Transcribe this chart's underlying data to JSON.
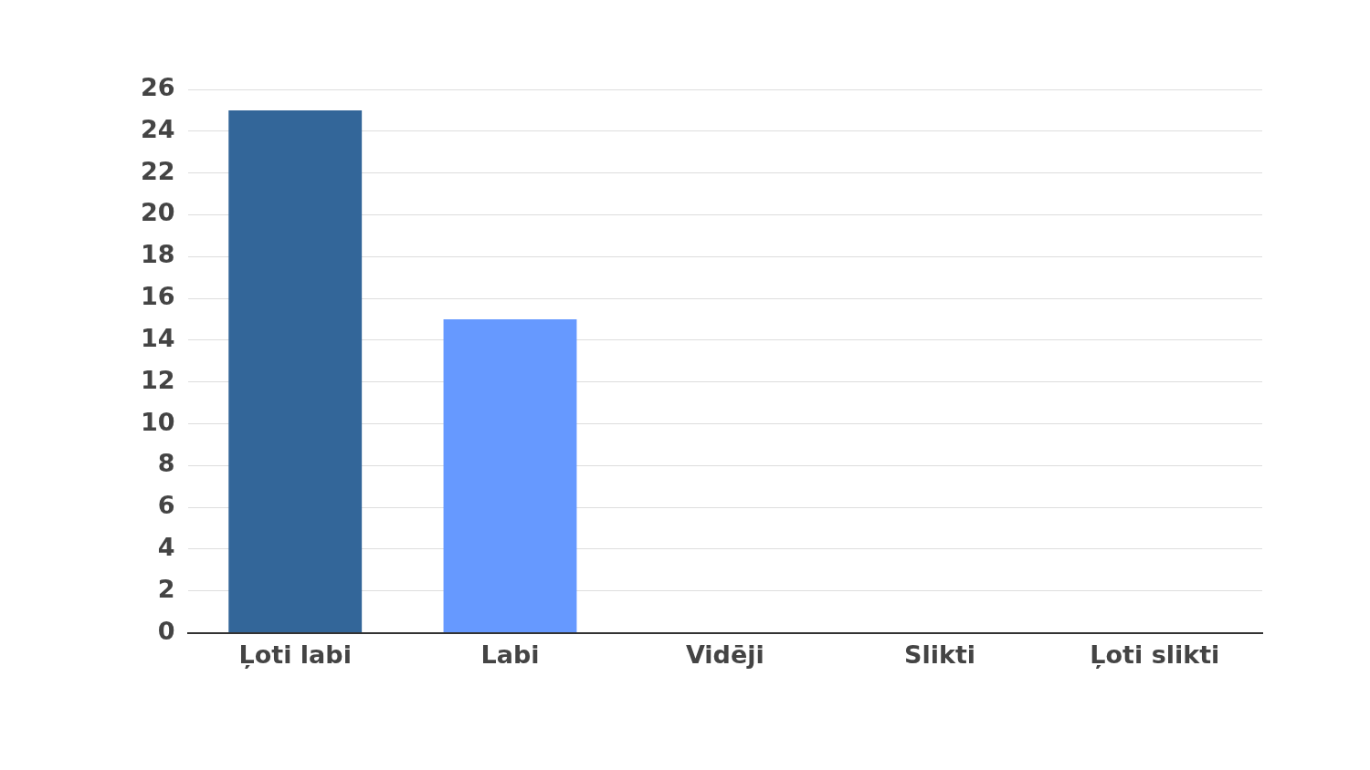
{
  "chart_data": {
    "type": "bar",
    "categories": [
      "Ļoti labi",
      "Labi",
      "Vidēji",
      "Slikti",
      "Ļoti slikti"
    ],
    "values": [
      25,
      15,
      0,
      0,
      0
    ],
    "colors": [
      "#336699",
      "#6699ff",
      "#6699ff",
      "#6699ff",
      "#6699ff"
    ],
    "ylim": [
      0,
      26
    ],
    "yticks": [
      0,
      2,
      4,
      6,
      8,
      10,
      12,
      14,
      16,
      18,
      20,
      22,
      24,
      26
    ],
    "grid": "y",
    "legend": false
  }
}
